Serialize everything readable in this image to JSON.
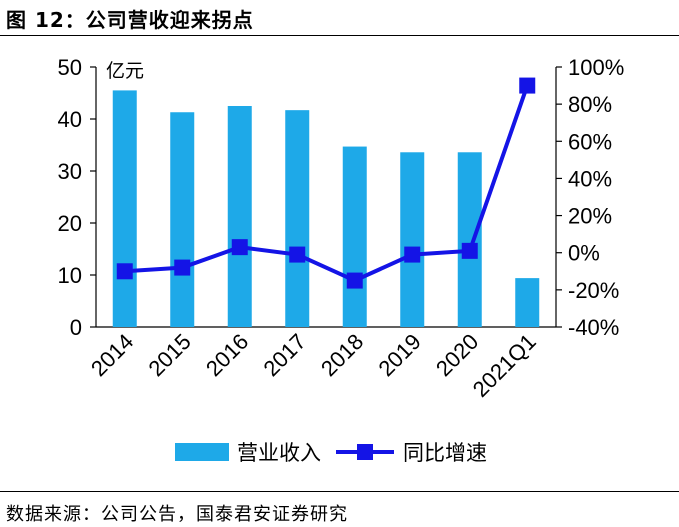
{
  "figure_title": "图 12：公司营收迎来拐点",
  "source_note": "数据来源：公司公告，国泰君安证券研究",
  "chart_data": {
    "type": "bar+line",
    "categories": [
      "2014",
      "2015",
      "2016",
      "2017",
      "2018",
      "2019",
      "2020",
      "2021Q1"
    ],
    "series": [
      {
        "name": "营业收入",
        "type": "bar",
        "axis": "left",
        "color": "#1EA9E8",
        "values": [
          45.5,
          41.3,
          42.5,
          41.7,
          34.7,
          33.6,
          33.6,
          9.4
        ]
      },
      {
        "name": "同比增速",
        "type": "line",
        "axis": "right",
        "color": "#1414E6",
        "marker": "square",
        "values": [
          -10,
          -8,
          3,
          -1,
          -15,
          -1,
          1,
          90
        ]
      }
    ],
    "left_axis": {
      "unit_label": "亿元",
      "min": 0,
      "max": 50,
      "ticks": [
        0,
        10,
        20,
        30,
        40,
        50
      ]
    },
    "right_axis": {
      "min": -40,
      "max": 100,
      "ticks": [
        -40,
        -20,
        0,
        20,
        40,
        60,
        80,
        100
      ],
      "tick_labels": [
        "-40%",
        "-20%",
        "0%",
        "20%",
        "40%",
        "60%",
        "80%",
        "100%"
      ]
    },
    "grid": false,
    "legend": {
      "position": "bottom"
    }
  }
}
